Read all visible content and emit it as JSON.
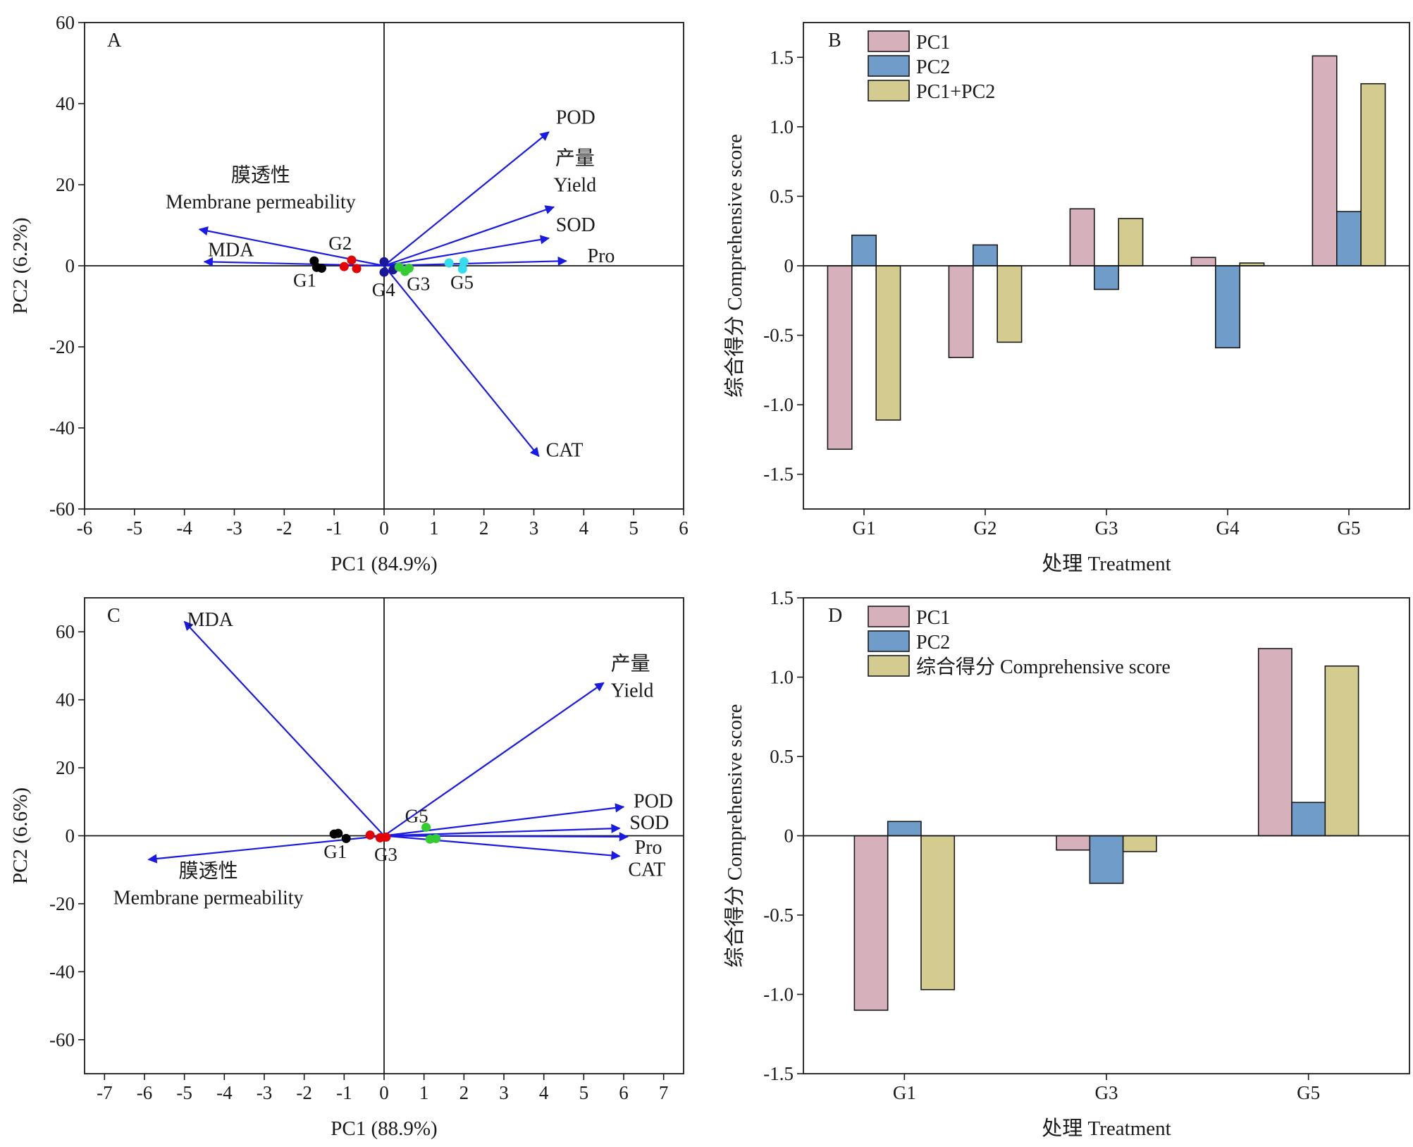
{
  "chart_data": [
    {
      "panel": "A",
      "type": "scatter",
      "subtype": "pca-biplot",
      "xlabel": "PC1 (84.9%)",
      "ylabel": "PC2 (6.2%)",
      "xlim": [
        -6,
        6
      ],
      "ylim": [
        -60,
        60
      ],
      "xticks": [
        -6,
        -5,
        -4,
        -3,
        -2,
        -1,
        0,
        1,
        2,
        3,
        4,
        5,
        6
      ],
      "yticks": [
        -60,
        -40,
        -20,
        0,
        20,
        40,
        60
      ],
      "grid": false,
      "crosshair": true,
      "arrow_color": "#1a1ae6",
      "loadings": [
        {
          "id": "pod",
          "label": "POD",
          "x": 3.3,
          "y": 33
        },
        {
          "id": "yield",
          "label": "Yield",
          "label_zh": "产量",
          "x": 3.4,
          "y": 14.5
        },
        {
          "id": "sod",
          "label": "SOD",
          "x": 3.3,
          "y": 6.8
        },
        {
          "id": "pro",
          "label": "Pro",
          "x": 3.65,
          "y": 1.2
        },
        {
          "id": "cat",
          "label": "CAT",
          "x": 3.1,
          "y": -47
        },
        {
          "id": "membrane",
          "label": "Membrane permeability",
          "label_zh": "膜透性",
          "x": -3.7,
          "y": 9
        },
        {
          "id": "mda",
          "label": "MDA",
          "x": -3.6,
          "y": 1
        }
      ],
      "groups": [
        {
          "name": "G1",
          "color": "#000000",
          "points": [
            [
              -1.4,
              1.2
            ],
            [
              -1.35,
              -0.4
            ],
            [
              -1.25,
              -0.6
            ]
          ]
        },
        {
          "name": "G2",
          "color": "#e60000",
          "points": [
            [
              -0.65,
              1.4
            ],
            [
              -0.8,
              -0.2
            ],
            [
              -0.55,
              -0.7
            ]
          ]
        },
        {
          "name": "G4",
          "color": "#1a1a99",
          "points": [
            [
              0.0,
              1.0
            ],
            [
              0.0,
              -1.6
            ],
            [
              0.18,
              -1.0
            ]
          ]
        },
        {
          "name": "G3",
          "color": "#33cc33",
          "points": [
            [
              0.3,
              -0.3
            ],
            [
              0.42,
              -1.4
            ],
            [
              0.5,
              -0.6
            ]
          ]
        },
        {
          "name": "G5",
          "color": "#33ddee",
          "points": [
            [
              1.3,
              0.7
            ],
            [
              1.6,
              1.0
            ],
            [
              1.57,
              -0.8
            ]
          ]
        }
      ]
    },
    {
      "panel": "B",
      "type": "bar",
      "xlabel": "处理 Treatment",
      "ylabel": "综合得分 Comprehensive score",
      "categories": [
        "G1",
        "G2",
        "G3",
        "G4",
        "G5"
      ],
      "ylim": [
        -1.75,
        1.75
      ],
      "yticks": [
        -1.5,
        -1.0,
        -0.5,
        0,
        0.5,
        1.0,
        1.5
      ],
      "ytick_labels": [
        "-1.5",
        "-1.0",
        "-0.5",
        "0",
        "0.5",
        "1.0",
        "1.5"
      ],
      "legend_position": "top-left",
      "series": [
        {
          "name": "PC1",
          "color": "#d6b0bb",
          "values": [
            -1.32,
            -0.66,
            0.41,
            0.06,
            1.51
          ]
        },
        {
          "name": "PC2",
          "color": "#6f9cc8",
          "values": [
            0.22,
            0.15,
            -0.17,
            -0.59,
            0.39
          ]
        },
        {
          "name": "PC1+PC2",
          "color": "#d4cb8e",
          "values": [
            -1.11,
            -0.55,
            0.34,
            0.02,
            1.31
          ]
        }
      ]
    },
    {
      "panel": "C",
      "type": "scatter",
      "subtype": "pca-biplot",
      "xlabel": "PC1 (88.9%)",
      "ylabel": "PC2 (6.6%)",
      "xlim": [
        -7.5,
        7.5
      ],
      "ylim": [
        -70,
        70
      ],
      "xticks": [
        -7,
        -6,
        -5,
        -4,
        -3,
        -2,
        -1,
        0,
        1,
        2,
        3,
        4,
        5,
        6,
        7
      ],
      "yticks": [
        -60,
        -40,
        -20,
        0,
        20,
        40,
        60
      ],
      "grid": false,
      "crosshair": true,
      "arrow_color": "#1a1ae6",
      "loadings": [
        {
          "id": "mda",
          "label": "MDA",
          "x": -5.0,
          "y": 63
        },
        {
          "id": "yield",
          "label": "Yield",
          "label_zh": "产量",
          "x": 5.5,
          "y": 45
        },
        {
          "id": "pod",
          "label": "POD",
          "x": 6.0,
          "y": 8.5
        },
        {
          "id": "sod",
          "label": "SOD",
          "x": 5.9,
          "y": 2.2
        },
        {
          "id": "pro",
          "label": "Pro",
          "x": 6.1,
          "y": -0.3
        },
        {
          "id": "cat",
          "label": "CAT",
          "x": 5.9,
          "y": -6
        },
        {
          "id": "membrane",
          "label": "Membrane permeability",
          "label_zh": "膜透性",
          "x": -5.9,
          "y": -7
        }
      ],
      "groups": [
        {
          "name": "G1",
          "color": "#000000",
          "points": [
            [
              -1.25,
              0.5
            ],
            [
              -1.15,
              0.7
            ],
            [
              -0.95,
              -0.8
            ]
          ]
        },
        {
          "name": "G3",
          "color": "#e60000",
          "points": [
            [
              -0.35,
              0.2
            ],
            [
              -0.1,
              -0.6
            ],
            [
              0.05,
              -0.4
            ]
          ]
        },
        {
          "name": "G5",
          "color": "#33cc33",
          "points": [
            [
              1.05,
              2.5
            ],
            [
              1.15,
              -1.0
            ],
            [
              1.3,
              -0.8
            ]
          ]
        }
      ]
    },
    {
      "panel": "D",
      "type": "bar",
      "xlabel": "处理 Treatment",
      "ylabel": "综合得分 Comprehensive score",
      "categories": [
        "G1",
        "G3",
        "G5"
      ],
      "ylim": [
        -1.5,
        1.5
      ],
      "yticks": [
        -1.5,
        -1.0,
        -0.5,
        0,
        0.5,
        1.0,
        1.5
      ],
      "ytick_labels": [
        "-1.5",
        "-1.0",
        "-0.5",
        "0",
        "0.5",
        "1.0",
        "1.5"
      ],
      "legend_position": "top-left",
      "series": [
        {
          "name": "PC1",
          "color": "#d6b0bb",
          "values": [
            -1.1,
            -0.09,
            1.18
          ]
        },
        {
          "name": "PC2",
          "color": "#6f9cc8",
          "values": [
            0.09,
            -0.3,
            0.21
          ]
        },
        {
          "name": "综合得分 Comprehensive score",
          "color": "#d4cb8e",
          "values": [
            -0.97,
            -0.1,
            1.07
          ]
        }
      ]
    }
  ]
}
